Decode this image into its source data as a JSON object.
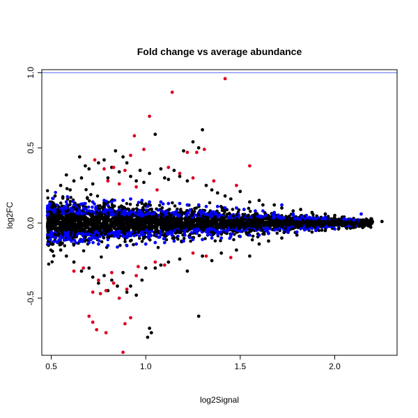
{
  "chart_data": {
    "type": "scatter",
    "title": "Fold change vs average abundance",
    "xlabel": "log2Signal",
    "ylabel": "log2FC",
    "xlim": [
      0.45,
      2.33
    ],
    "ylim": [
      -0.88,
      1.02
    ],
    "x_ticks": [
      0.5,
      1.0,
      1.5,
      2.0
    ],
    "x_tick_labels": [
      "0.5",
      "1.0",
      "1.5",
      "2.0"
    ],
    "y_ticks": [
      -0.5,
      0.0,
      0.5,
      1.0
    ],
    "y_tick_labels": [
      "-0.5",
      "0.0",
      "0.5",
      "1.0"
    ],
    "grid": false,
    "reference_line": {
      "y": 1.0,
      "color": "#5a6cf0"
    },
    "colors": {
      "black": "#000000",
      "blue": "#0000ff",
      "red": "#dd0022",
      "axis": "#000000"
    },
    "series": [
      {
        "color": "#000000",
        "points": [
          [
            0.52,
            0.18
          ],
          [
            0.55,
            0.25
          ],
          [
            0.58,
            0.32
          ],
          [
            0.6,
            0.22
          ],
          [
            0.62,
            0.28
          ],
          [
            0.65,
            0.44
          ],
          [
            0.66,
            0.3
          ],
          [
            0.68,
            0.38
          ],
          [
            0.7,
            0.36
          ],
          [
            0.72,
            0.26
          ],
          [
            0.75,
            0.4
          ],
          [
            0.78,
            0.42
          ],
          [
            0.8,
            0.3
          ],
          [
            0.82,
            0.37
          ],
          [
            0.84,
            0.48
          ],
          [
            0.86,
            0.34
          ],
          [
            0.88,
            0.44
          ],
          [
            0.9,
            0.4
          ],
          [
            0.92,
            0.31
          ],
          [
            0.95,
            0.28
          ],
          [
            0.97,
            0.35
          ],
          [
            0.99,
            0.27
          ],
          [
            1.02,
            0.33
          ],
          [
            1.05,
            0.59
          ],
          [
            1.08,
            0.36
          ],
          [
            1.1,
            0.3
          ],
          [
            1.12,
            0.29
          ],
          [
            1.15,
            0.35
          ],
          [
            1.18,
            0.31
          ],
          [
            1.2,
            0.48
          ],
          [
            1.22,
            0.28
          ],
          [
            1.25,
            0.54
          ],
          [
            1.28,
            0.5
          ],
          [
            1.3,
            0.62
          ],
          [
            1.32,
            0.25
          ],
          [
            1.35,
            0.22
          ],
          [
            1.38,
            0.2
          ],
          [
            1.42,
            0.18
          ],
          [
            1.45,
            0.16
          ],
          [
            1.5,
            0.21
          ],
          [
            1.55,
            0.14
          ],
          [
            1.6,
            0.15
          ],
          [
            1.62,
            0.12
          ],
          [
            1.68,
            0.12
          ],
          [
            1.72,
            0.1
          ],
          [
            1.78,
            0.08
          ],
          [
            1.82,
            0.09
          ],
          [
            1.88,
            0.07
          ],
          [
            1.95,
            0.06
          ],
          [
            2.0,
            0.05
          ],
          [
            2.05,
            0.04
          ],
          [
            2.1,
            0.03
          ],
          [
            2.15,
            0.02
          ],
          [
            2.2,
            0.01
          ],
          [
            2.25,
            0.01
          ],
          [
            0.55,
            -0.18
          ],
          [
            0.58,
            -0.22
          ],
          [
            0.62,
            -0.26
          ],
          [
            0.66,
            -0.32
          ],
          [
            0.7,
            -0.3
          ],
          [
            0.72,
            -0.36
          ],
          [
            0.75,
            -0.4
          ],
          [
            0.78,
            -0.35
          ],
          [
            0.8,
            -0.45
          ],
          [
            0.82,
            -0.38
          ],
          [
            0.85,
            -0.42
          ],
          [
            0.88,
            -0.33
          ],
          [
            0.9,
            -0.46
          ],
          [
            0.92,
            -0.42
          ],
          [
            0.95,
            -0.48
          ],
          [
            0.98,
            -0.38
          ],
          [
            1.0,
            -0.3
          ],
          [
            1.02,
            -0.7
          ],
          [
            1.03,
            -0.73
          ],
          [
            1.01,
            -0.76
          ],
          [
            1.05,
            -0.3
          ],
          [
            1.08,
            -0.28
          ],
          [
            1.12,
            -0.26
          ],
          [
            1.18,
            -0.24
          ],
          [
            1.22,
            -0.32
          ],
          [
            1.28,
            -0.62
          ],
          [
            1.3,
            -0.22
          ],
          [
            1.35,
            -0.25
          ],
          [
            1.4,
            -0.2
          ],
          [
            1.48,
            -0.18
          ],
          [
            1.55,
            -0.22
          ],
          [
            1.6,
            -0.14
          ],
          [
            1.65,
            -0.12
          ],
          [
            1.72,
            -0.1
          ],
          [
            1.8,
            -0.08
          ],
          [
            1.88,
            -0.06
          ],
          [
            1.95,
            -0.05
          ],
          [
            2.02,
            -0.04
          ],
          [
            2.1,
            -0.03
          ],
          [
            2.18,
            -0.02
          ]
        ]
      },
      {
        "color": "#0000ff",
        "points": [
          [
            0.48,
            0.05
          ],
          [
            0.5,
            -0.06
          ],
          [
            0.52,
            0.08
          ],
          [
            0.55,
            -0.09
          ],
          [
            0.58,
            0.1
          ],
          [
            0.6,
            -0.11
          ],
          [
            0.62,
            0.12
          ],
          [
            0.65,
            -0.12
          ],
          [
            0.68,
            0.13
          ],
          [
            0.7,
            -0.13
          ],
          [
            0.72,
            0.14
          ],
          [
            0.75,
            -0.14
          ],
          [
            0.78,
            0.15
          ],
          [
            0.8,
            -0.15
          ],
          [
            0.82,
            0.14
          ],
          [
            0.85,
            -0.16
          ],
          [
            0.88,
            0.15
          ],
          [
            0.9,
            -0.15
          ],
          [
            0.92,
            0.16
          ],
          [
            0.95,
            -0.14
          ],
          [
            0.98,
            0.15
          ],
          [
            1.0,
            -0.14
          ],
          [
            1.02,
            0.14
          ],
          [
            1.05,
            -0.13
          ],
          [
            1.08,
            0.14
          ],
          [
            1.1,
            -0.13
          ],
          [
            1.12,
            0.13
          ],
          [
            1.15,
            -0.12
          ],
          [
            1.18,
            0.13
          ],
          [
            1.2,
            -0.12
          ],
          [
            1.22,
            0.12
          ],
          [
            1.25,
            -0.11
          ],
          [
            1.28,
            0.12
          ],
          [
            1.3,
            -0.11
          ],
          [
            1.32,
            0.11
          ],
          [
            1.35,
            -0.1
          ],
          [
            1.38,
            0.11
          ],
          [
            1.4,
            -0.1
          ],
          [
            1.42,
            0.1
          ],
          [
            1.45,
            -0.09
          ],
          [
            1.48,
            0.1
          ],
          [
            1.5,
            -0.09
          ],
          [
            1.52,
            0.09
          ],
          [
            1.55,
            -0.08
          ],
          [
            1.58,
            0.08
          ],
          [
            1.6,
            -0.08
          ],
          [
            1.62,
            0.08
          ],
          [
            1.65,
            -0.07
          ],
          [
            1.68,
            0.07
          ],
          [
            1.72,
            0.12
          ],
          [
            1.75,
            -0.06
          ],
          [
            1.78,
            0.06
          ],
          [
            1.8,
            -0.06
          ],
          [
            1.85,
            0.05
          ],
          [
            1.9,
            -0.05
          ],
          [
            1.95,
            0.04
          ],
          [
            2.0,
            -0.04
          ],
          [
            2.05,
            0.03
          ],
          [
            2.1,
            0.02
          ],
          [
            2.14,
            0.06
          ]
        ]
      },
      {
        "color": "#dd0022",
        "points": [
          [
            1.42,
            0.96
          ],
          [
            1.14,
            0.87
          ],
          [
            1.02,
            0.71
          ],
          [
            0.94,
            0.58
          ],
          [
            0.99,
            0.49
          ],
          [
            1.22,
            0.47
          ],
          [
            1.27,
            0.47
          ],
          [
            0.92,
            0.45
          ],
          [
            1.31,
            0.49
          ],
          [
            0.73,
            0.42
          ],
          [
            1.55,
            0.38
          ],
          [
            0.78,
            0.36
          ],
          [
            0.83,
            0.37
          ],
          [
            0.89,
            0.35
          ],
          [
            1.12,
            0.37
          ],
          [
            1.18,
            0.33
          ],
          [
            1.36,
            0.28
          ],
          [
            1.48,
            0.25
          ],
          [
            0.8,
            0.28
          ],
          [
            0.86,
            0.26
          ],
          [
            0.95,
            0.24
          ],
          [
            1.06,
            0.22
          ],
          [
            1.25,
            0.3
          ],
          [
            0.62,
            -0.32
          ],
          [
            0.67,
            -0.3
          ],
          [
            0.72,
            -0.46
          ],
          [
            0.76,
            -0.47
          ],
          [
            0.79,
            -0.45
          ],
          [
            0.83,
            -0.4
          ],
          [
            0.86,
            -0.5
          ],
          [
            0.9,
            -0.44
          ],
          [
            0.95,
            -0.35
          ],
          [
            0.75,
            -0.38
          ],
          [
            0.7,
            -0.62
          ],
          [
            0.72,
            -0.66
          ],
          [
            0.74,
            -0.71
          ],
          [
            0.79,
            -0.73
          ],
          [
            0.89,
            -0.67
          ],
          [
            0.92,
            -0.63
          ],
          [
            0.88,
            -0.86
          ],
          [
            0.82,
            -0.33
          ],
          [
            1.1,
            -0.28
          ],
          [
            1.25,
            -0.2
          ],
          [
            1.32,
            -0.22
          ],
          [
            1.45,
            -0.23
          ],
          [
            0.96,
            -0.29
          ],
          [
            1.05,
            -0.26
          ]
        ]
      }
    ]
  }
}
